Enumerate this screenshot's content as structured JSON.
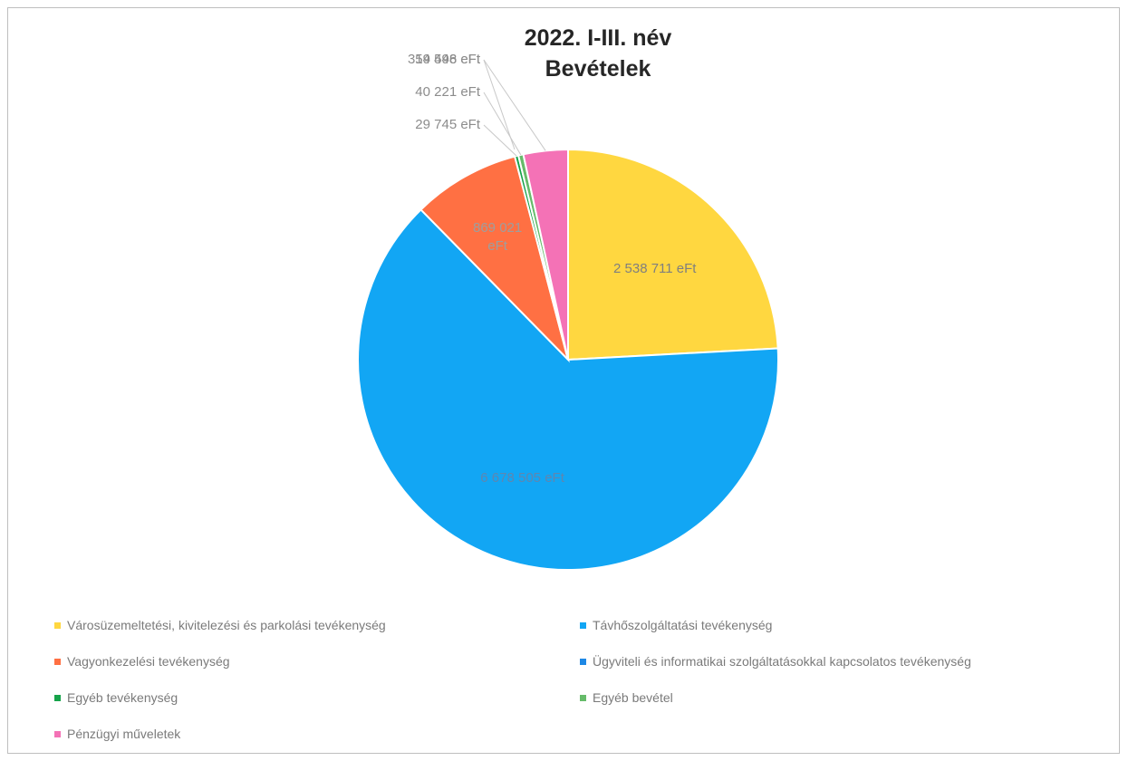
{
  "chart_data": {
    "type": "pie",
    "title": [
      "2022. I-III. név",
      "Bevételek"
    ],
    "start_angle_deg": 0,
    "direction": "clockwise",
    "legend_position": "bottom",
    "slices": [
      {
        "label": "Városüzemeltetési, kivitelezési és parkolási tevékenység",
        "value": 2538711,
        "value_label": "2 538 711 eFt",
        "color": "#ffd740",
        "label_color": "#7f7f7f"
      },
      {
        "label": "Távhőszolgáltatási tevékenység",
        "value": 6678505,
        "value_label": "6 678 505 eFt",
        "color": "#12a6f4",
        "label_color": "#5f86b0"
      },
      {
        "label": "Vagyonkezelési tevékenység",
        "value": 869021,
        "value_label": "869 021 eFt",
        "color": "#ff7043",
        "label_color": "#9e9e9e"
      },
      {
        "label": "Ügyviteli és informatikai szolgáltatásokkal kapcsolatos tevékenység",
        "value": 0,
        "value_label": "",
        "color": "#1e88e5",
        "label_color": "#8c8c8c"
      },
      {
        "label": "Egyéb tevékenység",
        "value": 29745,
        "value_label": "29 745 eFt",
        "color": "#16a34a",
        "label_color": "#8c8c8c"
      },
      {
        "label": "Egyéb bevétel",
        "value": 40221,
        "value_label": "40 221 eFt",
        "color": "#66bb6a",
        "label_color": "#8c8c8c"
      },
      {
        "label": "Pénzügyi műveletek",
        "value": 359498,
        "value_label": "359 498 eFt",
        "color": "#f472b6",
        "label_color": "#8c8c8c"
      }
    ],
    "extra_labels": [
      "14 546 eFt"
    ],
    "legend": [
      "Városüzemeltetési, kivitelezési és parkolási tevékenység",
      "Távhőszolgáltatási tevékenység",
      "Vagyonkezelési tevékenység",
      "Ügyviteli és informatikai szolgáltatásokkal kapcsolatos tevékenység",
      "Egyéb tevékenység",
      "Egyéb bevétel",
      "Pénzügyi műveletek"
    ]
  }
}
